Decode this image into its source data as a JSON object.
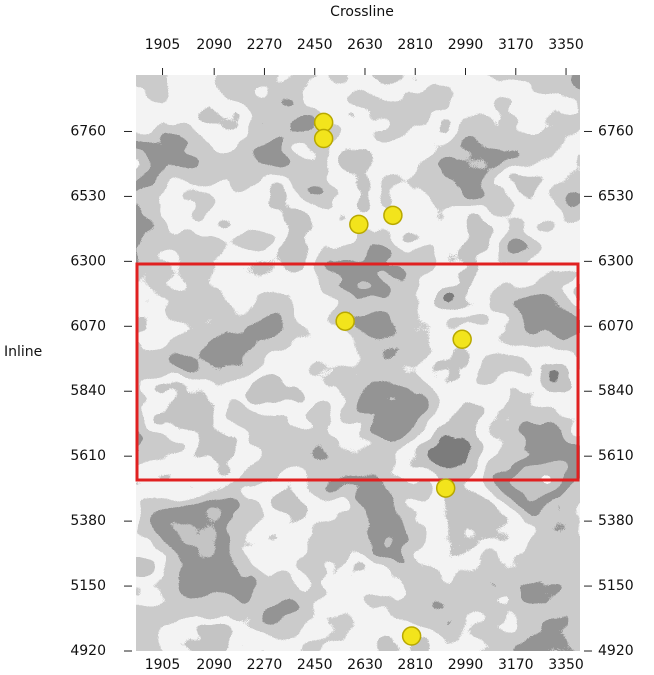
{
  "chart_data": {
    "type": "scatter",
    "xlabel": "Crossline",
    "ylabel": "Inline",
    "x": [
      2482,
      2482,
      2608,
      2730,
      2559,
      2978,
      2919,
      2797
    ],
    "values": [
      6792,
      6735,
      6431,
      6463,
      6088,
      6024,
      5497,
      4973
    ],
    "color": "#f2e41c",
    "xlim": [
      1810,
      3400
    ],
    "xticks": [
      1905,
      2090,
      2270,
      2450,
      2630,
      2810,
      2990,
      3170,
      3350
    ],
    "ylim": [
      4920,
      6960
    ],
    "yticks": [
      6760,
      6530,
      6300,
      6070,
      5840,
      5610,
      5380,
      5150,
      4920
    ]
  }
}
